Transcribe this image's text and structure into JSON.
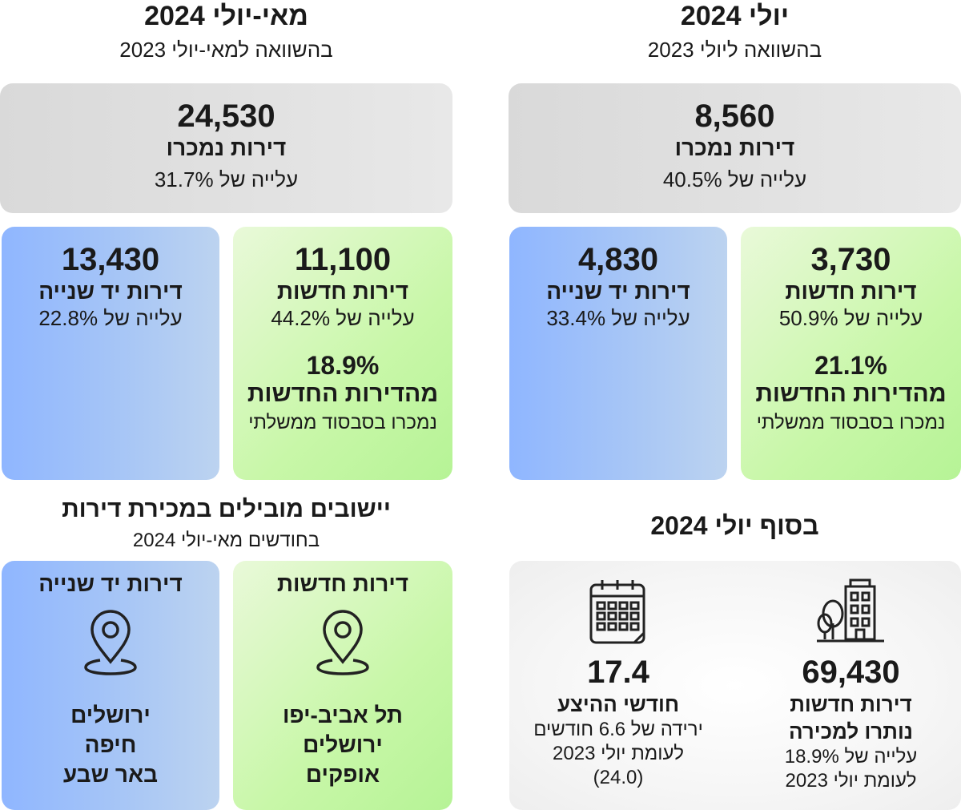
{
  "july": {
    "title": "יולי 2024",
    "subtitle": "בהשוואה ליולי 2023",
    "total": {
      "value": "8,560",
      "label": "דירות נמכרו",
      "change": "עלייה של 40.5%"
    },
    "new": {
      "value": "3,730",
      "label": "דירות חדשות",
      "change": "עלייה של 50.9%",
      "gov_pct": "21.1%",
      "gov_label": "מהדירות החדשות",
      "gov_sub": "נמכרו בסבסוד ממשלתי"
    },
    "used": {
      "value": "4,830",
      "label": "דירות יד שנייה",
      "change": "עלייה של 33.4%"
    }
  },
  "may_july": {
    "title": "מאי-יולי 2024",
    "subtitle": "בהשוואה למאי-יולי 2023",
    "total": {
      "value": "24,530",
      "label": "דירות נמכרו",
      "change": "עלייה של 31.7%"
    },
    "new": {
      "value": "11,100",
      "label": "דירות חדשות",
      "change": "עלייה של 44.2%",
      "gov_pct": "18.9%",
      "gov_label": "מהדירות החדשות",
      "gov_sub": "נמכרו בסבסוד ממשלתי"
    },
    "used": {
      "value": "13,430",
      "label": "דירות יד שנייה",
      "change": "עלייה של 22.8%"
    }
  },
  "end_july": {
    "title": "בסוף יולי 2024",
    "unsold": {
      "value": "69,430",
      "line1": "דירות חדשות",
      "line2": "נותרו למכירה",
      "change": "עלייה של 18.9%",
      "compare": "לעומת יולי 2023"
    },
    "months": {
      "value": "17.4",
      "label": "חודשי ההיצע",
      "change": "ירידה של 6.6 חודשים",
      "compare": "לעומת יולי 2023",
      "prev": "(24.0)"
    }
  },
  "leading": {
    "title": "יישובים מובילים במכירת דירות",
    "subtitle": "בחודשים מאי-יולי 2024",
    "new": {
      "label": "דירות חדשות",
      "cities": [
        "תל אביב-יפו",
        "ירושלים",
        "אופקים"
      ]
    },
    "used": {
      "label": "דירות יד שנייה",
      "cities": [
        "ירושלים",
        "חיפה",
        "באר שבע"
      ]
    }
  },
  "icons": {
    "pin": "location-pin-icon",
    "calendar": "calendar-icon",
    "building": "building-icon"
  }
}
